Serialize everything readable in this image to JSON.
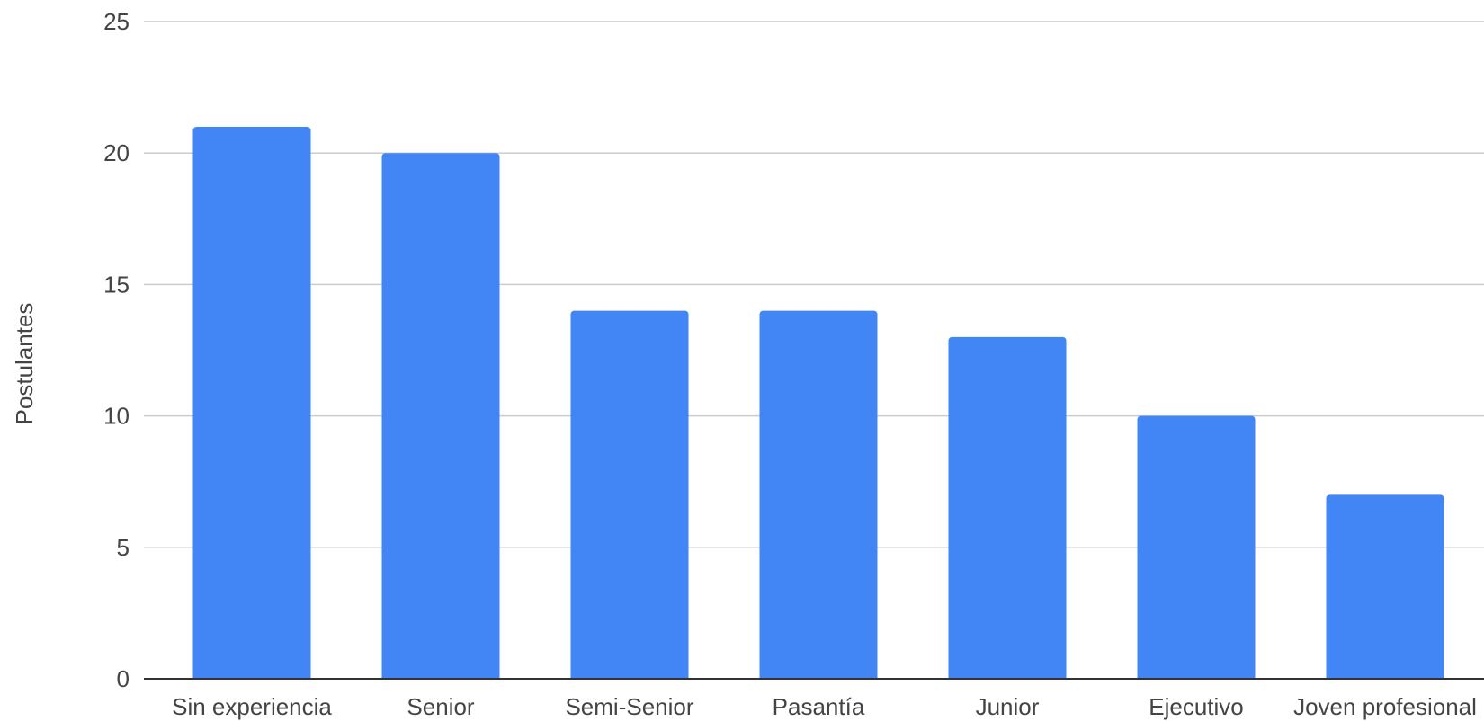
{
  "chart_data": {
    "type": "bar",
    "title": "",
    "xlabel": "",
    "ylabel": "Postulantes",
    "categories": [
      "Sin experiencia",
      "Senior",
      "Semi-Senior",
      "Pasantía",
      "Junior",
      "Ejecutivo",
      "Joven profesional"
    ],
    "series": [
      {
        "values": [
          21,
          20,
          14,
          14,
          13,
          10,
          7
        ],
        "color": "#4285f4"
      }
    ],
    "ylim": [
      0,
      25
    ],
    "yticks": [
      0,
      5,
      10,
      15,
      20,
      25
    ],
    "grid": true,
    "legend": "none"
  }
}
